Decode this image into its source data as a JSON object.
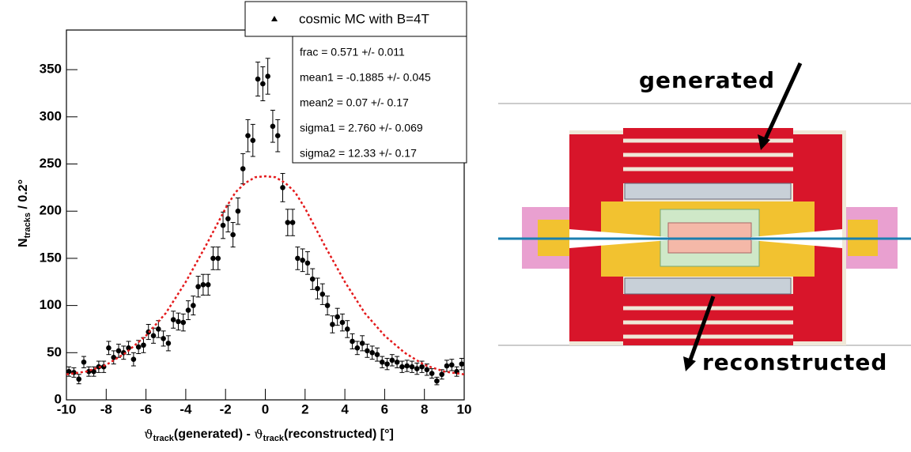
{
  "chart_data": {
    "type": "histogram-fit",
    "ylabel": {
      "main": "N",
      "sub": "tracks",
      "rest": " / 0.2°"
    },
    "xlabel": {
      "symbol": "ϑ",
      "sub": "track",
      "part1": "(generated) - ",
      "part2": "(reconstructed) [°]"
    },
    "xlim": [
      -10,
      10
    ],
    "xticks": [
      -10,
      -8,
      -6,
      -4,
      -2,
      0,
      2,
      4,
      6,
      8,
      10
    ],
    "ylim": [
      0,
      392
    ],
    "yticks": [
      0,
      50,
      100,
      150,
      200,
      250,
      300,
      350
    ],
    "series": [
      {
        "name": "cosmic MC with B=4T",
        "color": "#000000",
        "x": [
          -9.875,
          -9.625,
          -9.375,
          -9.125,
          -8.875,
          -8.625,
          -8.375,
          -8.125,
          -7.875,
          -7.625,
          -7.375,
          -7.125,
          -6.875,
          -6.625,
          -6.375,
          -6.125,
          -5.875,
          -5.625,
          -5.375,
          -5.125,
          -4.875,
          -4.625,
          -4.375,
          -4.125,
          -3.875,
          -3.625,
          -3.375,
          -3.125,
          -2.875,
          -2.625,
          -2.375,
          -2.125,
          -1.875,
          -1.625,
          -1.375,
          -1.125,
          -0.875,
          -0.625,
          -0.375,
          -0.125,
          0.125,
          0.375,
          0.625,
          0.875,
          1.125,
          1.375,
          1.625,
          1.875,
          2.125,
          2.375,
          2.625,
          2.875,
          3.125,
          3.375,
          3.625,
          3.875,
          4.125,
          4.375,
          4.625,
          4.875,
          5.125,
          5.375,
          5.625,
          5.875,
          6.125,
          6.375,
          6.625,
          6.875,
          7.125,
          7.375,
          7.625,
          7.875,
          8.125,
          8.375,
          8.625,
          8.875,
          9.125,
          9.375,
          9.625,
          9.875
        ],
        "values": [
          30,
          29,
          22,
          40,
          30,
          30,
          35,
          35,
          55,
          45,
          52,
          50,
          55,
          43,
          56,
          58,
          72,
          68,
          75,
          65,
          60,
          85,
          83,
          82,
          95,
          100,
          120,
          122,
          122,
          150,
          150,
          185,
          192,
          175,
          200,
          245,
          280,
          275,
          340,
          335,
          343,
          290,
          280,
          225,
          188,
          188,
          150,
          148,
          145,
          128,
          118,
          112,
          100,
          80,
          88,
          82,
          75,
          62,
          55,
          60,
          52,
          50,
          48,
          40,
          38,
          42,
          40,
          35,
          36,
          35,
          33,
          35,
          32,
          28,
          20,
          27,
          36,
          37,
          30,
          38
        ],
        "errors": [
          5,
          5,
          5,
          6,
          5,
          5,
          6,
          6,
          7,
          7,
          7,
          7,
          7,
          7,
          7,
          8,
          8,
          8,
          9,
          8,
          8,
          9,
          9,
          9,
          10,
          10,
          11,
          11,
          11,
          12,
          12,
          14,
          14,
          13,
          14,
          16,
          17,
          17,
          18,
          18,
          19,
          17,
          17,
          15,
          14,
          14,
          12,
          12,
          12,
          11,
          11,
          11,
          10,
          9,
          9,
          9,
          9,
          8,
          7,
          8,
          7,
          7,
          7,
          6,
          6,
          6,
          6,
          6,
          6,
          6,
          6,
          6,
          6,
          5,
          4,
          5,
          6,
          6,
          5,
          6
        ]
      },
      {
        "color": "#e41a1c",
        "x": [
          -10,
          -9,
          -8,
          -7,
          -6,
          -5,
          -4,
          -3,
          -2,
          -1.5,
          -1,
          -0.5,
          0,
          0.5,
          1,
          1.5,
          2,
          3,
          4,
          5,
          6,
          7,
          8,
          9,
          10
        ],
        "values": [
          27,
          30,
          37,
          50,
          68,
          92,
          125,
          163,
          203,
          220,
          230,
          236,
          237,
          236,
          230,
          220,
          203,
          163,
          125,
          92,
          68,
          50,
          37,
          30,
          27
        ]
      }
    ],
    "stats": [
      "frac =  0.571 +/- 0.011",
      "mean1 = -0.1885 +/- 0.045",
      "mean2 =  0.07 +/- 0.17",
      "sigma1 =  2.760 +/- 0.069",
      "sigma2 =  12.33 +/- 0.17"
    ]
  },
  "diagram": {
    "generated": "generated",
    "reconstructed": "reconstructed"
  }
}
